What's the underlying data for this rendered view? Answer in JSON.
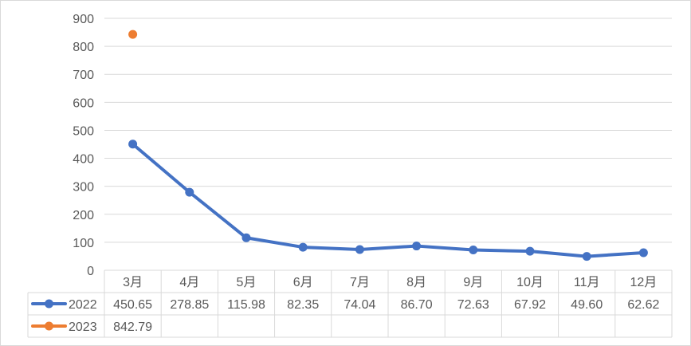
{
  "chart_data": {
    "type": "line",
    "categories": [
      "3月",
      "4月",
      "5月",
      "6月",
      "7月",
      "8月",
      "9月",
      "10月",
      "11月",
      "12月"
    ],
    "series": [
      {
        "name": "2022",
        "color": "#4472c4",
        "values": [
          450.65,
          278.85,
          115.98,
          82.35,
          74.04,
          86.7,
          72.63,
          67.92,
          49.6,
          62.62
        ],
        "labels": [
          "450.65",
          "278.85",
          "115.98",
          "82.35",
          "74.04",
          "86.70",
          "72.63",
          "67.92",
          "49.60",
          "62.62"
        ]
      },
      {
        "name": "2023",
        "color": "#ed7d31",
        "values": [
          842.79,
          null,
          null,
          null,
          null,
          null,
          null,
          null,
          null,
          null
        ],
        "labels": [
          "842.79",
          "",
          "",
          "",
          "",
          "",
          "",
          "",
          "",
          ""
        ]
      }
    ],
    "ylim": [
      0,
      900
    ],
    "yticks": [
      0,
      100,
      200,
      300,
      400,
      500,
      600,
      700,
      800,
      900
    ],
    "grid": true,
    "legend": "data-table",
    "title": "",
    "xlabel": "",
    "ylabel": ""
  }
}
